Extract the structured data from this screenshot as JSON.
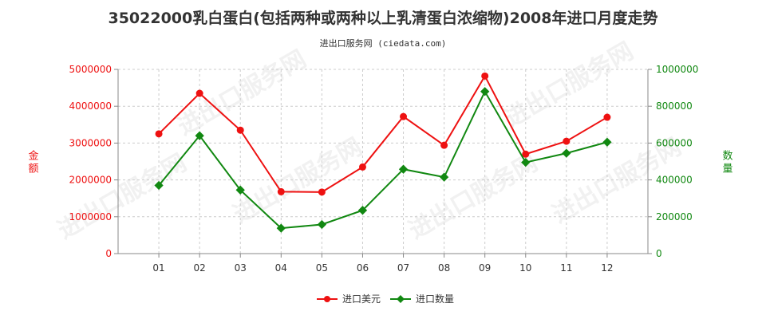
{
  "title": "35022000乳白蛋白(包括两种或两种以上乳清蛋白浓缩物)2008年进口月度走势",
  "subtitle": "进出口服务网 (ciedata.com)",
  "watermark": "进出口服务网",
  "colors": {
    "value": "#ee1111",
    "quantity": "#118811",
    "grid": "#cccccc",
    "axis": "#888888"
  },
  "chart_data": {
    "type": "line",
    "categories": [
      "01",
      "02",
      "03",
      "04",
      "05",
      "06",
      "07",
      "08",
      "09",
      "10",
      "11",
      "12"
    ],
    "y_left": {
      "label": "金额",
      "ylim": [
        0,
        5000000
      ],
      "ticks": [
        "0",
        "1000000",
        "2000000",
        "3000000",
        "4000000",
        "5000000"
      ]
    },
    "y_right": {
      "label": "数量",
      "ylim": [
        0,
        1000000
      ],
      "ticks": [
        "0",
        "200000",
        "400000",
        "600000",
        "800000",
        "1000000"
      ]
    },
    "series": [
      {
        "name": "进口美元",
        "axis": "left",
        "color": "#ee1111",
        "values": [
          3250000,
          4350000,
          3350000,
          1680000,
          1670000,
          2350000,
          3720000,
          2940000,
          4820000,
          2700000,
          3050000,
          3700000
        ]
      },
      {
        "name": "进口数量",
        "axis": "right",
        "color": "#118811",
        "values": [
          370000,
          640000,
          345000,
          138000,
          158000,
          235000,
          458000,
          415000,
          880000,
          495000,
          545000,
          605000
        ]
      }
    ],
    "grid": true,
    "legend": "bottom-center"
  }
}
